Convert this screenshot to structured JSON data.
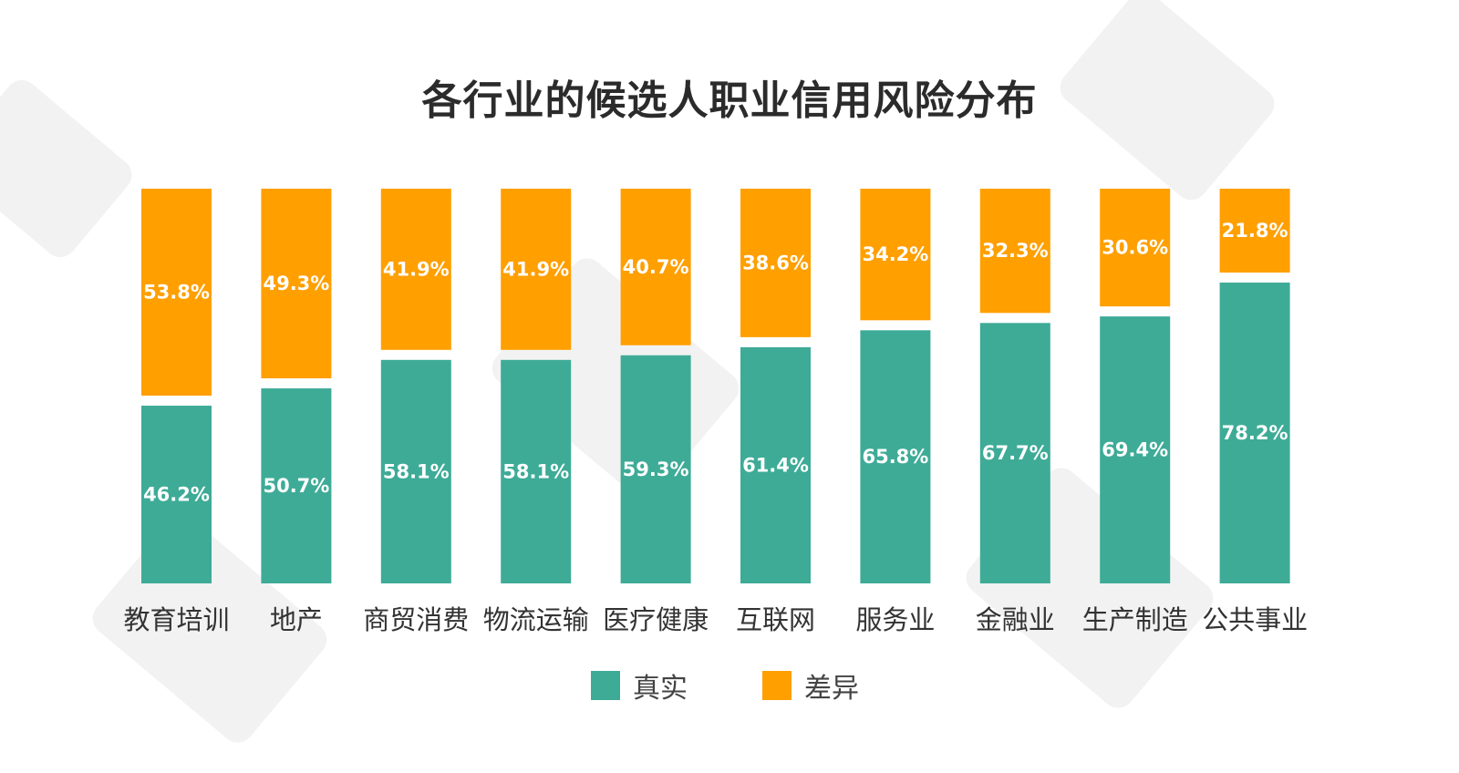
{
  "chart_data": {
    "type": "bar",
    "stacked": true,
    "title": "各行业的候选人职业信用风险分布",
    "categories": [
      "教育培训",
      "地产",
      "商贸消费",
      "物流运输",
      "医疗健康",
      "互联网",
      "服务业",
      "金融业",
      "生产制造",
      "公共事业"
    ],
    "series": [
      {
        "name": "真实",
        "color": "#3eab97",
        "values": [
          46.2,
          50.7,
          58.1,
          58.1,
          59.3,
          61.4,
          65.8,
          67.7,
          69.4,
          78.2
        ],
        "labels": [
          "46.2%",
          "50.7%",
          "58.1%",
          "58.1%",
          "59.3%",
          "61.4%",
          "65.8%",
          "67.7%",
          "69.4%",
          "78.2%"
        ]
      },
      {
        "name": "差异",
        "color": "#ff9f00",
        "values": [
          53.8,
          49.3,
          41.9,
          41.9,
          40.7,
          38.6,
          34.2,
          32.3,
          30.6,
          21.8
        ],
        "labels": [
          "53.8%",
          "49.3%",
          "41.9%",
          "41.9%",
          "40.7%",
          "38.6%",
          "34.2%",
          "32.3%",
          "30.6%",
          "21.8%"
        ]
      }
    ],
    "ylim": [
      0,
      100
    ],
    "grid": false,
    "legend_position": "bottom-center"
  }
}
